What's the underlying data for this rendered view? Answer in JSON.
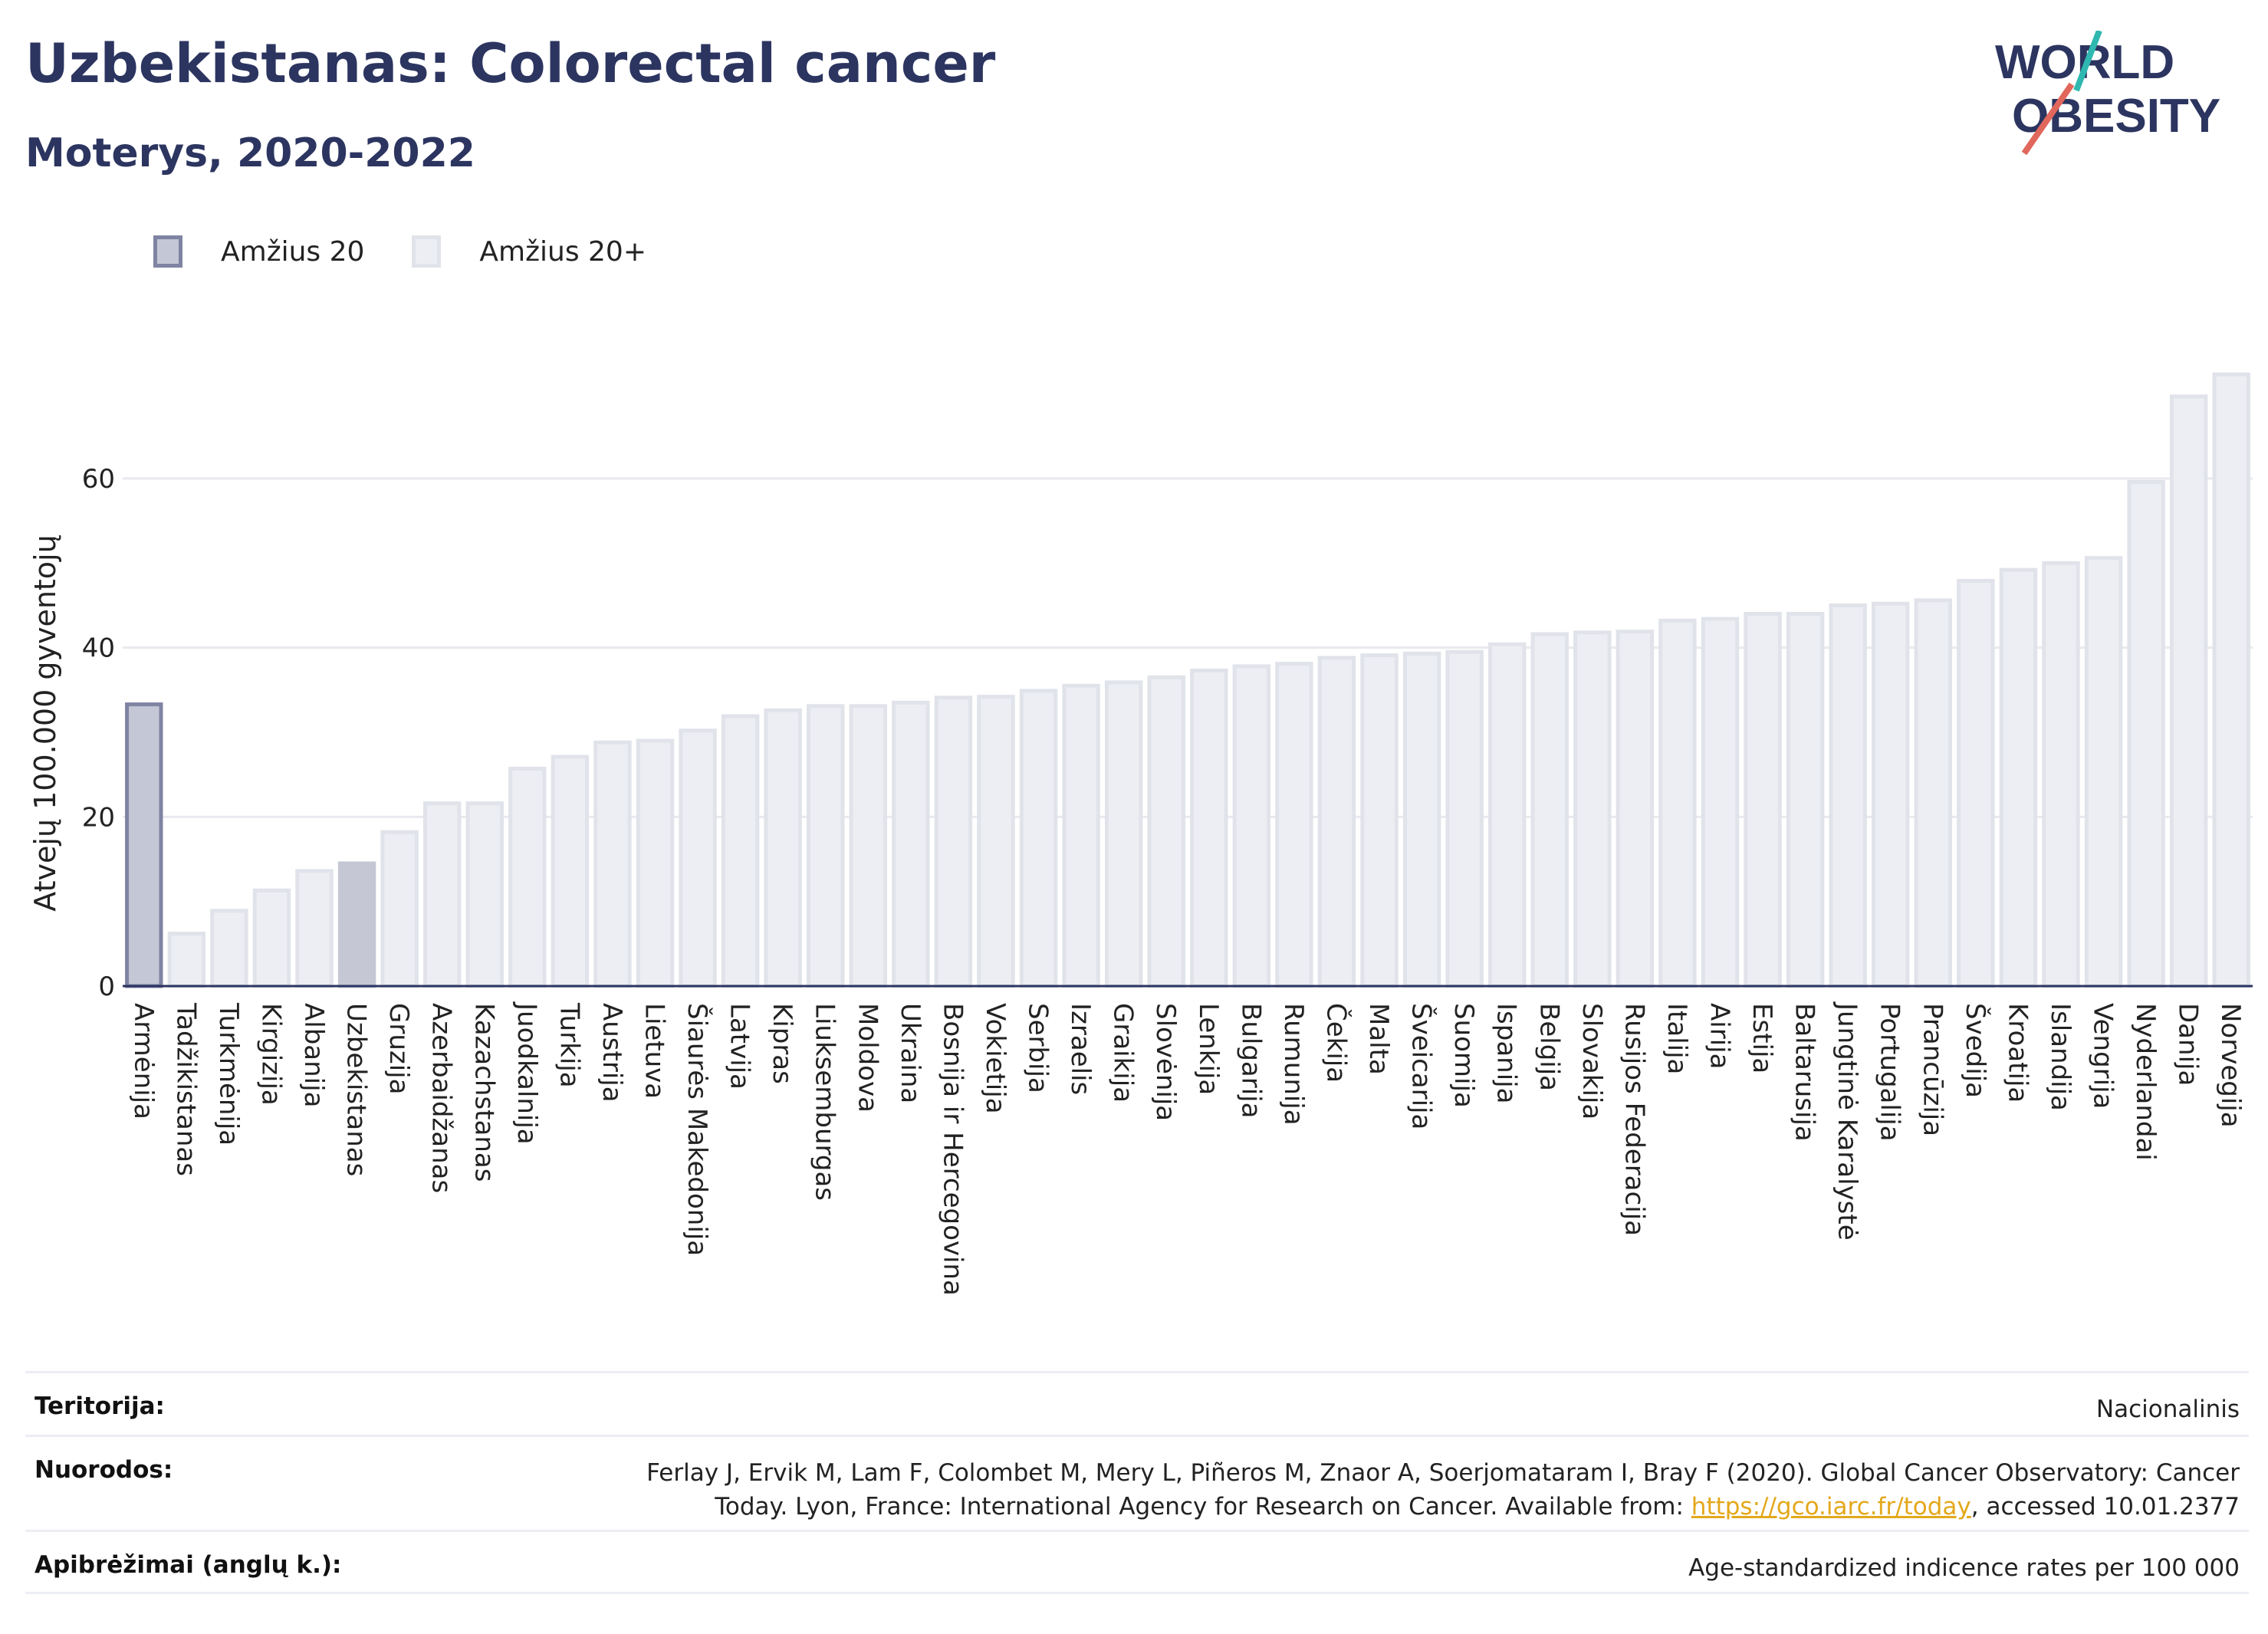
{
  "header": {
    "title": "Uzbekistanas: Colorectal cancer",
    "subtitle": "Moterys, 2020-2022"
  },
  "logo": {
    "line1": "WORLD",
    "line2": "OBESITY"
  },
  "legend": [
    {
      "label": "Amžius 20",
      "color": "#c4c7d6"
    },
    {
      "label": "Amžius 20+",
      "color": "#edeef3"
    }
  ],
  "chart_data": {
    "type": "bar",
    "ylabel": "Atvejų 100.000 gyventojų",
    "ylim": [
      0,
      75
    ],
    "yticks": [
      0,
      20,
      40,
      60
    ],
    "grid": true,
    "legend_position": "top-left",
    "highlight": "Uzbekistanas",
    "categories": [
      "Armėnija",
      "Tadžikistanas",
      "Turkmėnija",
      "Kirgizija",
      "Albanija",
      "Uzbekistanas",
      "Gruzija",
      "Azerbaidžanas",
      "Kazachstanas",
      "Juodkalnija",
      "Turkija",
      "Austrija",
      "Lietuva",
      "Šiaurės Makedonija",
      "Latvija",
      "Kipras",
      "Liuksemburgas",
      "Moldova",
      "Ukraina",
      "Bosnija ir Hercegovina",
      "Vokietija",
      "Serbija",
      "Izraelis",
      "Graikija",
      "Slovėnija",
      "Lenkija",
      "Bulgarija",
      "Rumunija",
      "Čekija",
      "Malta",
      "Šveicarija",
      "Suomija",
      "Ispanija",
      "Belgija",
      "Slovakija",
      "Rusijos Federacija",
      "Italija",
      "Airija",
      "Estija",
      "Baltarusija",
      "Jungtinė Karalystė",
      "Portugalija",
      "Prancūzija",
      "Švedija",
      "Kroatija",
      "Islandija",
      "Vengrija",
      "Nyderlandai",
      "Danija",
      "Norvegija"
    ],
    "values": [
      33.3,
      6.2,
      8.9,
      11.3,
      13.6,
      14.5,
      18.2,
      21.6,
      21.6,
      25.7,
      27.1,
      28.8,
      29.0,
      30.2,
      31.9,
      32.6,
      33.1,
      33.1,
      33.5,
      34.1,
      34.2,
      34.9,
      35.5,
      35.9,
      36.5,
      37.3,
      37.8,
      38.1,
      38.8,
      39.1,
      39.3,
      39.5,
      40.4,
      41.6,
      41.8,
      41.9,
      43.2,
      43.4,
      44.0,
      44.0,
      45.0,
      45.2,
      45.6,
      47.9,
      49.2,
      50.0,
      50.6,
      59.6,
      69.7,
      72.3
    ],
    "series_of_category": [
      "Amžius 20",
      "Amžius 20+"
    ]
  },
  "colors": {
    "age20_fill": "#c4c7d6",
    "age20_stroke": "#7f84a3",
    "age20plus_fill": "#edeef3",
    "age20plus_stroke": "#e1e3ea",
    "highlight_fill": "#c5c7d4",
    "title": "#2c3560",
    "grid": "#e9eaef",
    "axis": "#2c3560",
    "link": "#e3a81b"
  },
  "footer": {
    "territory_label": "Teritorija:",
    "territory_value": "Nacionalinis",
    "references_label": "Nuorodos:",
    "references_text_1": "Ferlay J, Ervik M, Lam F, Colombet M, Mery L, Piñeros M, Znaor A, Soerjomataram I, Bray F (2020). Global Cancer Observatory: Cancer Today. Lyon, France: International Agency for Research on Cancer. Available from: ",
    "references_link": "https://gco.iarc.fr/today",
    "references_text_2": ", accessed 10.01.2377",
    "definitions_label": "Apibrėžimai (anglų k.):",
    "definitions_value": "Age-standardized indicence rates per 100 000"
  }
}
